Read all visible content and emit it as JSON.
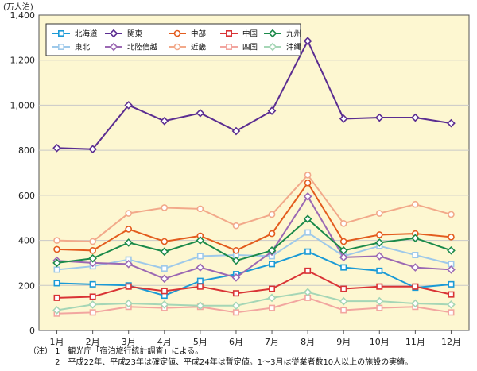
{
  "chart_data": {
    "type": "line",
    "unit_label": "(万人泊)",
    "categories": [
      "1月",
      "2月",
      "3月",
      "4月",
      "5月",
      "6月",
      "7月",
      "8月",
      "9月",
      "10月",
      "11月",
      "12月"
    ],
    "ylim": [
      0,
      1400
    ],
    "yticks": [
      "0",
      "200",
      "400",
      "600",
      "800",
      "1,000",
      "1,200",
      "1,400"
    ],
    "grid": "horizontal",
    "legend_position": "top-left",
    "series": [
      {
        "name": "北海道",
        "color": "#1a9ad6",
        "marker": "square",
        "values": [
          210,
          205,
          200,
          155,
          220,
          250,
          295,
          350,
          280,
          265,
          190,
          205
        ]
      },
      {
        "name": "東北",
        "color": "#9ec9ea",
        "marker": "square",
        "values": [
          270,
          285,
          315,
          275,
          330,
          335,
          330,
          435,
          330,
          375,
          335,
          295
        ]
      },
      {
        "name": "関東",
        "color": "#5b2d91",
        "marker": "diamond",
        "values": [
          810,
          805,
          1000,
          930,
          965,
          885,
          975,
          1285,
          940,
          945,
          945,
          920
        ]
      },
      {
        "name": "北陸信越",
        "color": "#9b68b3",
        "marker": "diamond",
        "values": [
          310,
          300,
          295,
          230,
          280,
          235,
          350,
          595,
          325,
          330,
          280,
          270
        ]
      },
      {
        "name": "中部",
        "color": "#e35c1e",
        "marker": "circle",
        "values": [
          360,
          355,
          450,
          395,
          420,
          355,
          430,
          655,
          395,
          425,
          430,
          415
        ]
      },
      {
        "name": "近畿",
        "color": "#f2a98a",
        "marker": "circle",
        "values": [
          400,
          395,
          520,
          545,
          540,
          465,
          515,
          690,
          475,
          520,
          560,
          515
        ]
      },
      {
        "name": "中国",
        "color": "#d93335",
        "marker": "square",
        "values": [
          145,
          150,
          195,
          175,
          195,
          165,
          185,
          265,
          185,
          195,
          195,
          160
        ]
      },
      {
        "name": "四国",
        "color": "#f2a6a0",
        "marker": "square",
        "values": [
          75,
          80,
          105,
          100,
          105,
          80,
          100,
          145,
          90,
          100,
          105,
          80
        ]
      },
      {
        "name": "九州",
        "color": "#1b8a4a",
        "marker": "diamond",
        "values": [
          300,
          320,
          390,
          350,
          400,
          310,
          355,
          495,
          355,
          390,
          410,
          355
        ]
      },
      {
        "name": "沖縄",
        "color": "#a5d6b6",
        "marker": "diamond",
        "values": [
          90,
          115,
          120,
          115,
          110,
          110,
          145,
          170,
          130,
          130,
          120,
          115
        ]
      }
    ]
  },
  "notes": {
    "line1": "（注） 1　観光庁「宿泊旅行統計調査」による。",
    "line2": "　　　 2　平成22年、平成23年は確定値、平成24年は暫定値。1～3月は従業者数10人以上の施設の実績。"
  },
  "colors": {
    "plot_background": "#fdf7d1",
    "gridline": "#c8c8c8",
    "axis": "#555555"
  }
}
